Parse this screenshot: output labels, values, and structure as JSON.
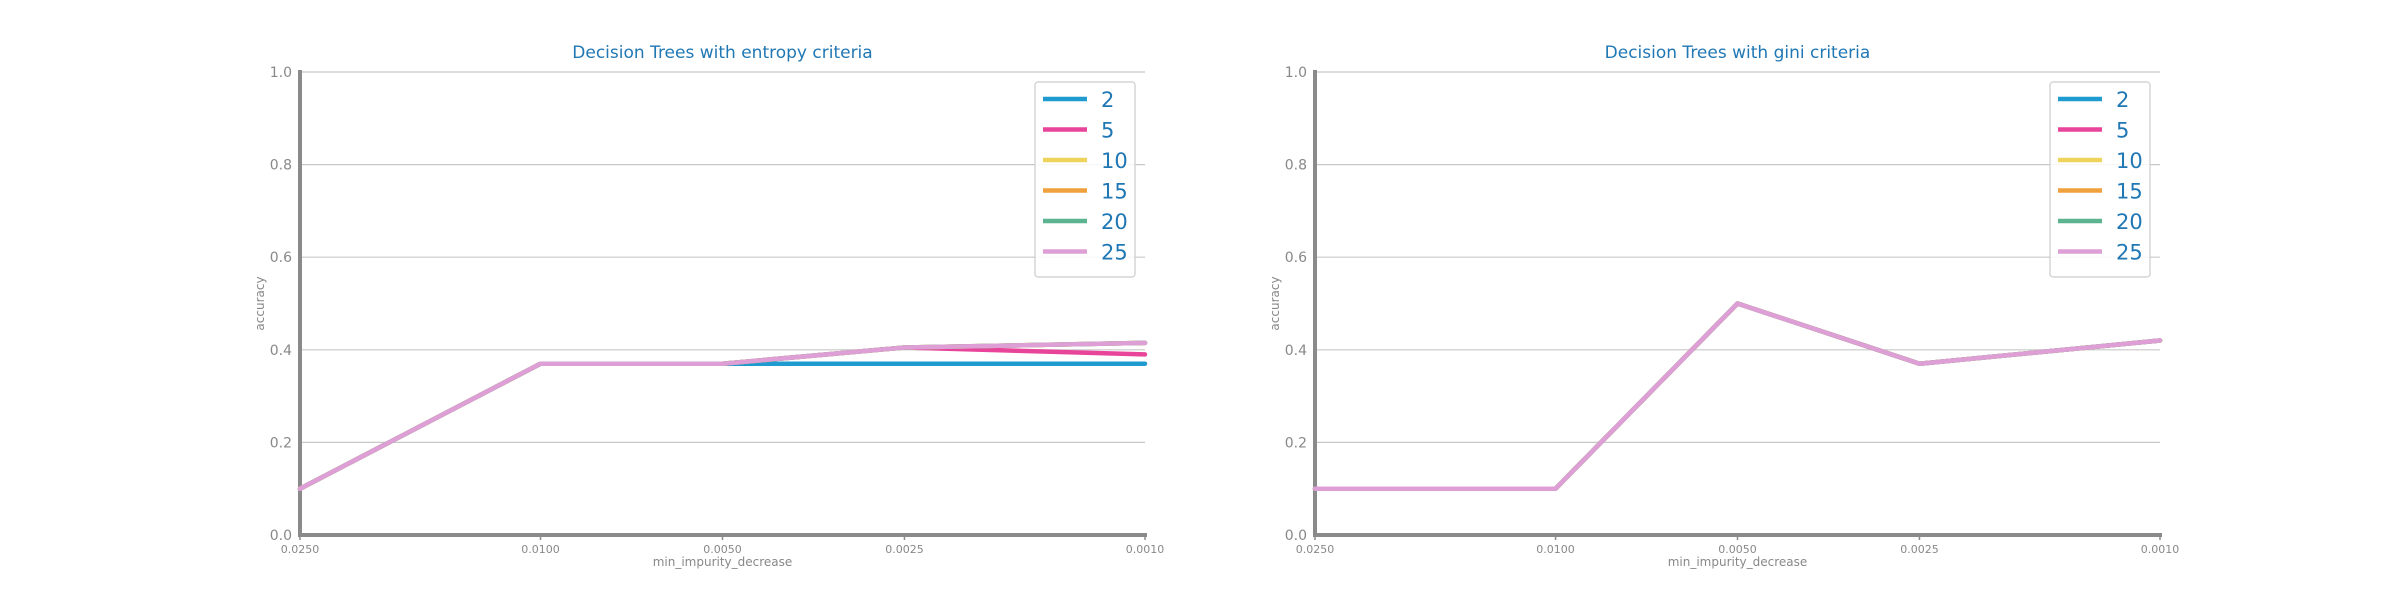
{
  "chart_data": [
    {
      "type": "line",
      "title": "Decision Trees with entropy criteria",
      "xlabel": "min_impurity_decrease",
      "ylabel": "accuracy",
      "x": [
        "0.0250",
        "0.0100",
        "0.0050",
        "0.0025",
        "0.0010"
      ],
      "x_values": [
        0.025,
        0.01,
        0.005,
        0.0025,
        0.001
      ],
      "ylim": [
        0,
        1
      ],
      "yticks": [
        "0.0",
        "0.2",
        "0.4",
        "0.6",
        "0.8",
        "1.0"
      ],
      "grid": "horizontal",
      "legend_position": "top-right",
      "series": [
        {
          "name": "2",
          "color": "#1f9bcf",
          "values": [
            0.1,
            0.37,
            0.37,
            0.37,
            0.37
          ]
        },
        {
          "name": "5",
          "color": "#e8449a",
          "values": [
            0.1,
            0.37,
            0.37,
            0.405,
            0.39
          ]
        },
        {
          "name": "10",
          "color": "#efd45c",
          "values": [
            0.1,
            0.37,
            0.37,
            0.405,
            0.415
          ]
        },
        {
          "name": "15",
          "color": "#f0a03c",
          "values": [
            0.1,
            0.37,
            0.37,
            0.405,
            0.415
          ]
        },
        {
          "name": "20",
          "color": "#5bb38f",
          "values": [
            0.1,
            0.37,
            0.37,
            0.405,
            0.415
          ]
        },
        {
          "name": "25",
          "color": "#dd9fd6",
          "values": [
            0.1,
            0.37,
            0.37,
            0.405,
            0.415
          ]
        }
      ]
    },
    {
      "type": "line",
      "title": "Decision Trees with gini criteria",
      "xlabel": "min_impurity_decrease",
      "ylabel": "accuracy",
      "x": [
        "0.0250",
        "0.0100",
        "0.0050",
        "0.0025",
        "0.0010"
      ],
      "x_values": [
        0.025,
        0.01,
        0.005,
        0.0025,
        0.001
      ],
      "ylim": [
        0,
        1
      ],
      "yticks": [
        "0.0",
        "0.2",
        "0.4",
        "0.6",
        "0.8",
        "1.0"
      ],
      "grid": "horizontal",
      "legend_position": "top-right",
      "series": [
        {
          "name": "2",
          "color": "#1f9bcf",
          "values": [
            0.1,
            0.1,
            0.5,
            0.37,
            0.42
          ]
        },
        {
          "name": "5",
          "color": "#e8449a",
          "values": [
            0.1,
            0.1,
            0.5,
            0.37,
            0.42
          ]
        },
        {
          "name": "10",
          "color": "#efd45c",
          "values": [
            0.1,
            0.1,
            0.5,
            0.37,
            0.42
          ]
        },
        {
          "name": "15",
          "color": "#f0a03c",
          "values": [
            0.1,
            0.1,
            0.5,
            0.37,
            0.42
          ]
        },
        {
          "name": "20",
          "color": "#5bb38f",
          "values": [
            0.1,
            0.1,
            0.5,
            0.37,
            0.42
          ]
        },
        {
          "name": "25",
          "color": "#dd9fd6",
          "values": [
            0.1,
            0.1,
            0.5,
            0.37,
            0.42
          ]
        }
      ]
    }
  ]
}
